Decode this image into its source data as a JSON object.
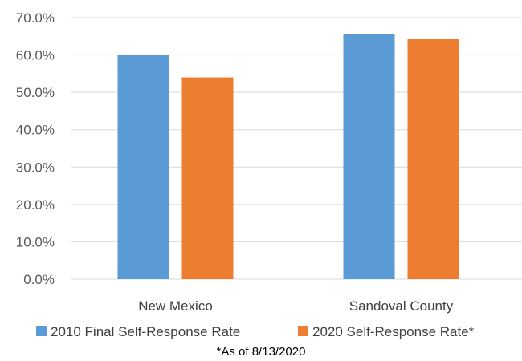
{
  "chart_data": {
    "type": "bar",
    "categories": [
      "New Mexico",
      "Sandoval County"
    ],
    "series": [
      {
        "name": "2010 Final Self-Response Rate",
        "values": [
          60.0,
          65.6
        ],
        "color": "#5b9bd5"
      },
      {
        "name": "2020 Self-Response Rate*",
        "values": [
          54.0,
          64.2
        ],
        "color": "#ed7d31"
      }
    ],
    "ylim": [
      0,
      70
    ],
    "yticks": [
      0,
      10,
      20,
      30,
      40,
      50,
      60,
      70
    ],
    "ytick_labels": [
      "0.0%",
      "10.0%",
      "20.0%",
      "30.0%",
      "40.0%",
      "50.0%",
      "60.0%",
      "70.0%"
    ],
    "grid": true,
    "legend_position": "bottom",
    "annotation": "*As of 8/13/2020"
  }
}
